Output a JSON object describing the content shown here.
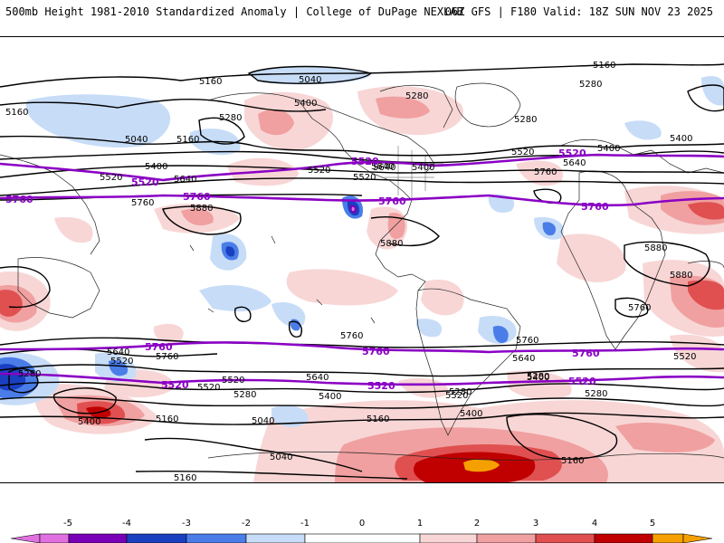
{
  "header": {
    "title": "500mb Height 1981-2010 Standardized Anomaly | College of DuPage NEXLAB",
    "run_info": "06Z GFS | F180 Valid: 18Z SUN NOV 23 2025"
  },
  "map": {
    "height_labels": [
      "5160",
      "5040",
      "5160",
      "5400",
      "5280",
      "5160",
      "5280",
      "5040",
      "5160",
      "5280",
      "5520",
      "5400",
      "5400",
      "5280",
      "5520",
      "5640",
      "5640",
      "5400",
      "5520",
      "5640",
      "5760",
      "5400",
      "5520",
      "5640",
      "5880",
      "5880",
      "5880",
      "5880",
      "5760",
      "5760",
      "5640",
      "5520",
      "5760",
      "5640",
      "5520",
      "5280",
      "5520",
      "5400",
      "5280",
      "5640",
      "5400",
      "5280",
      "5400",
      "5040",
      "5160",
      "5040",
      "5160",
      "5160",
      "5160",
      "5520",
      "5400",
      "5280",
      "5760",
      "5520",
      "5280",
      "5760"
    ],
    "purple_labels": [
      "5520",
      "5520",
      "5520",
      "5760",
      "5760",
      "5760",
      "5760",
      "5760",
      "5760",
      "5760",
      "5520",
      "5520",
      "5520"
    ]
  },
  "colors": {
    "purple_contour": "#8a00c4",
    "black_contour": "#000000",
    "neg5": "#e070e0",
    "neg4": "#7a00b8",
    "neg3": "#1a3fc0",
    "neg2": "#4a7de8",
    "neg1": "#c7dcf7",
    "zero": "#ffffff",
    "pos1": "#f8d6d6",
    "pos2": "#f0a0a0",
    "pos3": "#e05050",
    "pos4": "#c00000",
    "pos5": "#f5a000"
  },
  "legend": {
    "ticks": [
      "-5",
      "-4",
      "-3",
      "-2",
      "-1",
      "0",
      "1",
      "2",
      "3",
      "4",
      "5"
    ]
  }
}
